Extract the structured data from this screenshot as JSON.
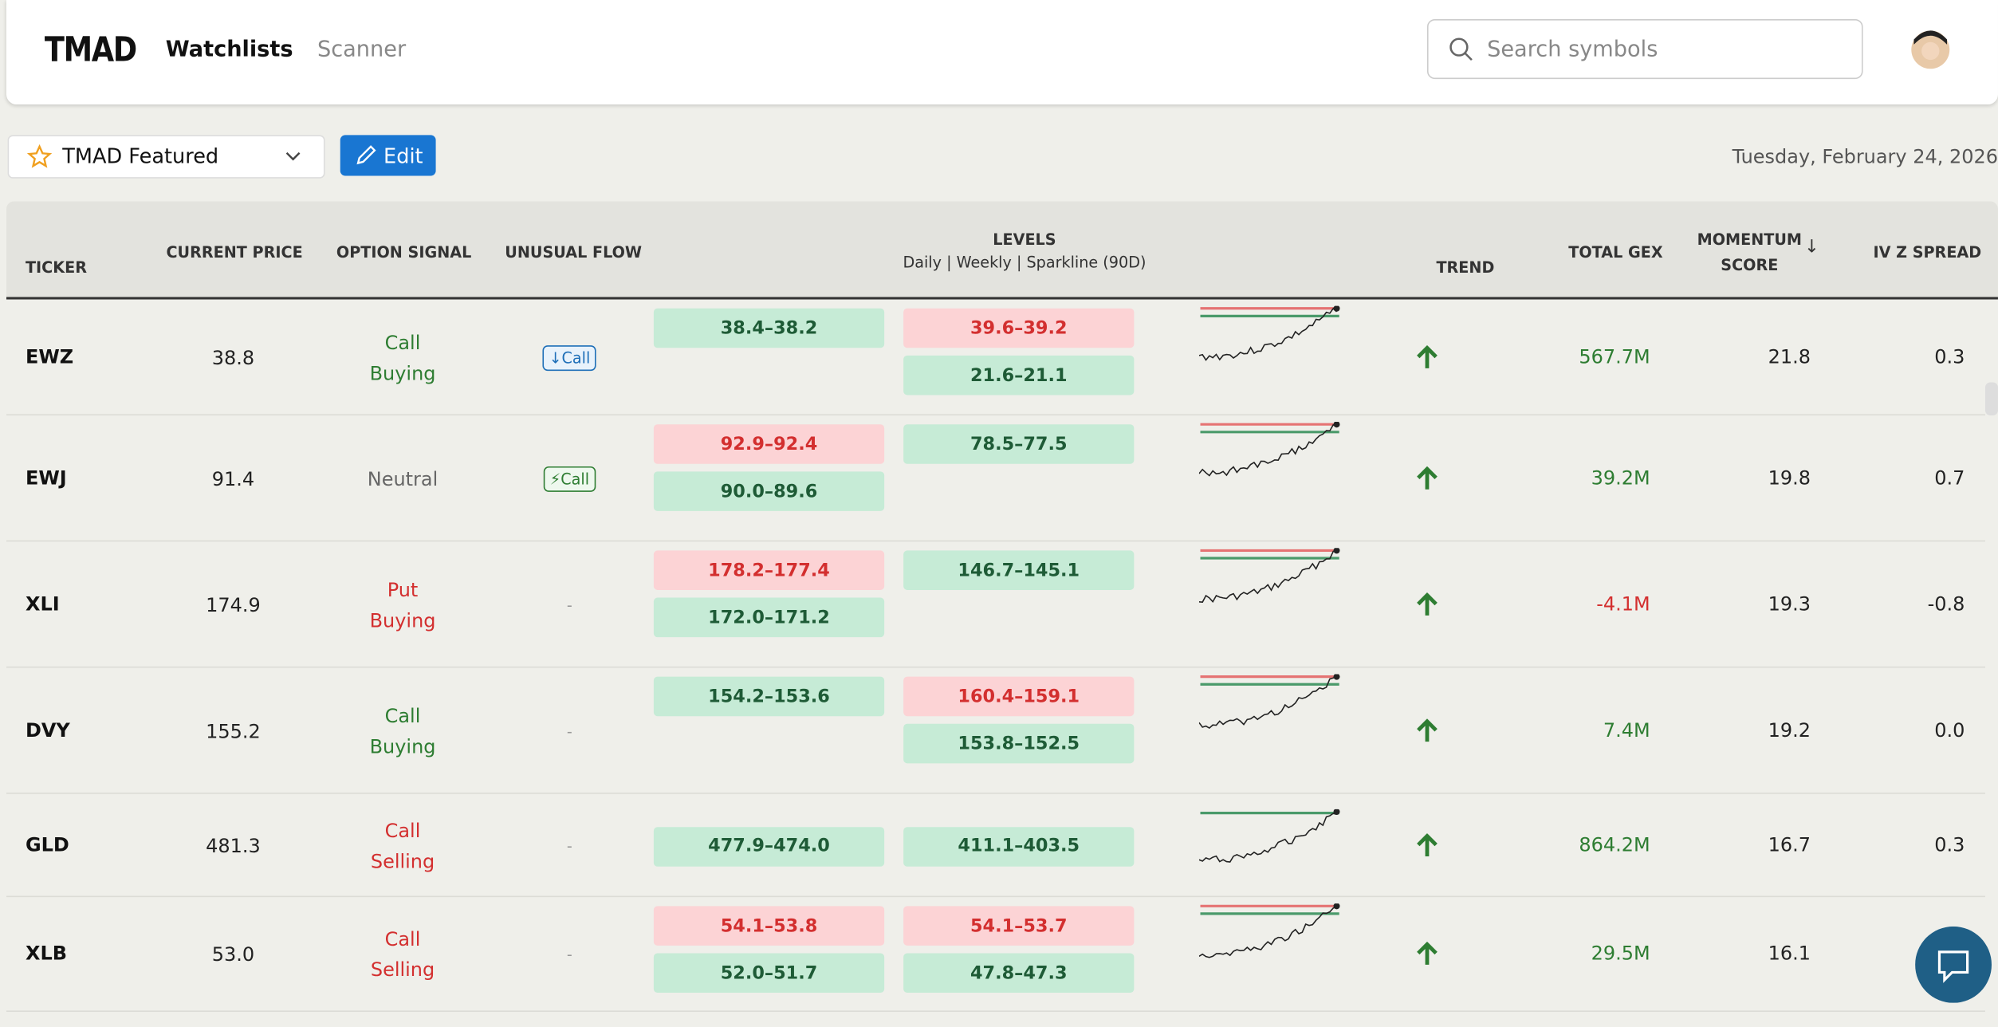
{
  "header": {
    "logo": "TMAD",
    "nav": [
      "Watchlists",
      "Scanner"
    ],
    "search_placeholder": "Search symbols"
  },
  "toolbar": {
    "watchlist": "TMAD Featured",
    "edit": "Edit",
    "date": "Tuesday, February 24, 2026"
  },
  "table": {
    "columns": [
      "TICKER",
      "CURRENT PRICE",
      "OPTION SIGNAL",
      "UNUSUAL FLOW",
      "LEVELS",
      "TREND",
      "TOTAL GEX",
      "MOMENTUM SCORE",
      "IV Z SPREAD"
    ],
    "levels_subtitle": "Daily | Weekly | Sparkline (90D)",
    "rows": [
      {
        "ticker": "EWZ",
        "price": "38.8",
        "signal": "Call Buying",
        "signal_color": "#2e7d32",
        "flow": "↓Call",
        "flow_color": "#1e6fb8",
        "daily": [
          {
            "text": "38.4–38.2",
            "color": "green"
          }
        ],
        "weekly": [
          {
            "text": "39.6–39.2",
            "color": "red"
          },
          {
            "text": "21.6–21.1",
            "color": "green"
          }
        ],
        "gex": "567.7M",
        "gex_color": "#2e7d32",
        "momentum": "21.8",
        "iv": "0.3"
      },
      {
        "ticker": "EWJ",
        "price": "91.4",
        "signal": "Neutral",
        "signal_color": "#666666",
        "flow": "⚡Call",
        "flow_color": "#2e7d32",
        "daily": [
          {
            "text": "92.9–92.4",
            "color": "red"
          },
          {
            "text": "90.0–89.6",
            "color": "green"
          }
        ],
        "weekly": [
          {
            "text": "78.5–77.5",
            "color": "green"
          }
        ],
        "gex": "39.2M",
        "gex_color": "#2e7d32",
        "momentum": "19.8",
        "iv": "0.7"
      },
      {
        "ticker": "XLI",
        "price": "174.9",
        "signal": "Put Buying",
        "signal_color": "#d32f2f",
        "flow": "-",
        "flow_color": "#999999",
        "daily": [
          {
            "text": "178.2–177.4",
            "color": "red"
          },
          {
            "text": "172.0–171.2",
            "color": "green"
          }
        ],
        "weekly": [
          {
            "text": "146.7–145.1",
            "color": "green"
          }
        ],
        "gex": "-4.1M",
        "gex_color": "#d32f2f",
        "momentum": "19.3",
        "iv": "-0.8"
      },
      {
        "ticker": "DVY",
        "price": "155.2",
        "signal": "Call Buying",
        "signal_color": "#2e7d32",
        "flow": "-",
        "flow_color": "#999999",
        "daily": [
          {
            "text": "154.2–153.6",
            "color": "green"
          }
        ],
        "weekly": [
          {
            "text": "160.4–159.1",
            "color": "red"
          },
          {
            "text": "153.8–152.5",
            "color": "green"
          }
        ],
        "gex": "7.4M",
        "gex_color": "#2e7d32",
        "momentum": "19.2",
        "iv": "0.0"
      },
      {
        "ticker": "GLD",
        "price": "481.3",
        "signal": "Call Selling",
        "signal_color": "#d32f2f",
        "flow": "-",
        "flow_color": "#999999",
        "daily": [
          {
            "text": "477.9–474.0",
            "color": "green"
          }
        ],
        "weekly": [
          {
            "text": "411.1–403.5",
            "color": "green"
          }
        ],
        "gex": "864.2M",
        "gex_color": "#2e7d32",
        "momentum": "16.7",
        "iv": "0.3"
      },
      {
        "ticker": "XLB",
        "price": "53.0",
        "signal": "Call Selling",
        "signal_color": "#d32f2f",
        "flow": "-",
        "flow_color": "#999999",
        "daily": [
          {
            "text": "54.1–53.8",
            "color": "red"
          },
          {
            "text": "52.0–51.7",
            "color": "green"
          }
        ],
        "weekly": [
          {
            "text": "54.1–53.7",
            "color": "red"
          },
          {
            "text": "47.8–47.3",
            "color": "green"
          }
        ],
        "gex": "29.5M",
        "gex_color": "#2e7d32",
        "momentum": "16.1",
        "iv": ""
      }
    ]
  }
}
